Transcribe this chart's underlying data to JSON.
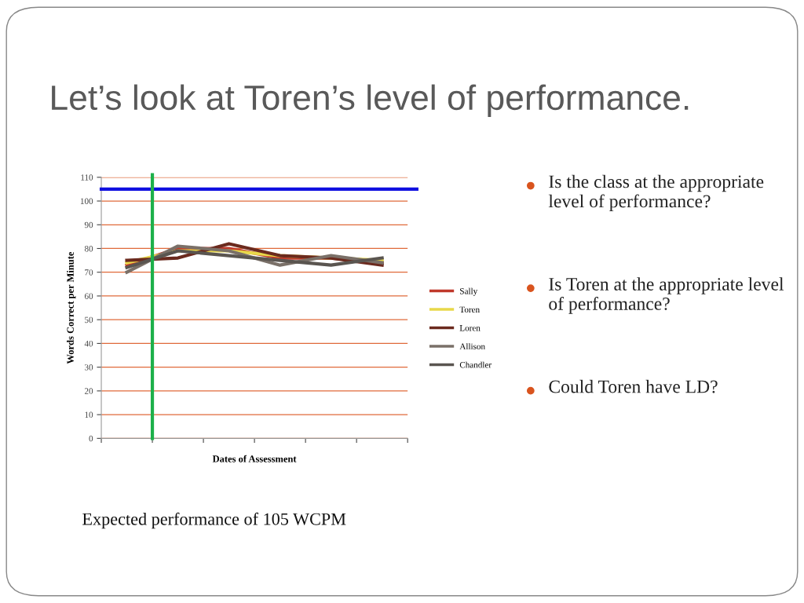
{
  "chart_data": {
    "type": "line",
    "title": "Let’s look at Toren’s level of performance.",
    "xlabel": "Dates of Assessment",
    "ylabel": "Words Correct per Minute",
    "categories": [
      null,
      null,
      null,
      null,
      null,
      null
    ],
    "series": [
      {
        "name": "Sally",
        "color": "#c0392b",
        "values": [
          73,
          80,
          80,
          76,
          76,
          74
        ]
      },
      {
        "name": "Toren",
        "color": "#e8d84a",
        "values": [
          74,
          79,
          79,
          77,
          76,
          75
        ]
      },
      {
        "name": "Loren",
        "color": "#6b2a1e",
        "values": [
          75,
          76,
          82,
          77,
          76,
          73
        ]
      },
      {
        "name": "Allison",
        "color": "#7a7068",
        "values": [
          70,
          81,
          79,
          73,
          77,
          74
        ]
      },
      {
        "name": "Chandler",
        "color": "#5a5550",
        "values": [
          72,
          79,
          77,
          75,
          73,
          76
        ]
      }
    ],
    "ylim": [
      0,
      110
    ],
    "yticks": [
      0,
      10,
      20,
      30,
      40,
      50,
      60,
      70,
      80,
      90,
      100,
      110
    ],
    "grid": "y",
    "legend": "right",
    "marker": "none",
    "line_style": "solid",
    "ref_lines": [
      {
        "axis": "y",
        "value": 105,
        "color": "#1010e0"
      }
    ],
    "annotations": [
      "Is the class at the appropriate level of performance?",
      "Is Toren at the appropriate level of performance?",
      "Could Toren have LD?",
      "Expected performance of 105 WCPM"
    ]
  }
}
